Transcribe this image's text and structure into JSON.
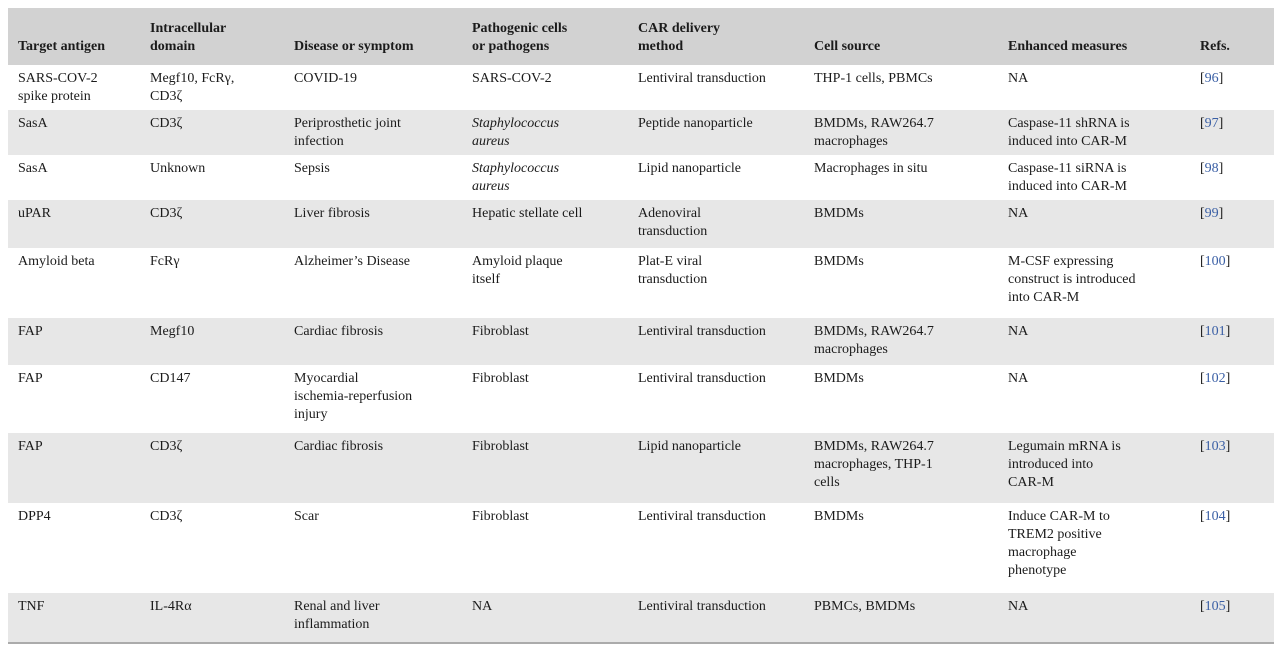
{
  "colors": {
    "header_bg": "#d2d2d2",
    "row_shade": "#e7e7e7",
    "text": "#1b1b1b",
    "ref_link": "#3a5fa5"
  },
  "table": {
    "columns": [
      "Target antigen",
      "Intracellular\ndomain",
      "Disease or symptom",
      "Pathogenic cells\nor pathogens",
      "CAR delivery\nmethod",
      "Cell source",
      "Enhanced measures",
      "Refs."
    ],
    "rows": [
      {
        "cells": [
          "SARS-COV-2\nspike protein",
          "Megf10, FcRγ,\nCD3ζ",
          "COVID-19",
          "SARS-COV-2",
          "Lentiviral transduction",
          "THP-1 cells, PBMCs",
          "NA"
        ],
        "ref": "96",
        "pathogen_italic": false
      },
      {
        "cells": [
          "SasA",
          "CD3ζ",
          "Periprosthetic joint\ninfection",
          "Staphylococcus\naureus",
          "Peptide nanoparticle",
          "BMDMs, RAW264.7\nmacrophages",
          "Caspase-11 shRNA is\ninduced into CAR-M"
        ],
        "ref": "97",
        "pathogen_italic": true
      },
      {
        "cells": [
          "SasA",
          "Unknown",
          "Sepsis",
          "Staphylococcus\naureus",
          "Lipid nanoparticle",
          "Macrophages in situ",
          "Caspase-11 siRNA is\ninduced into CAR-M"
        ],
        "ref": "98",
        "pathogen_italic": true
      },
      {
        "cells": [
          "uPAR",
          "CD3ζ",
          "Liver fibrosis",
          "Hepatic stellate cell",
          "Adenoviral\ntransduction",
          "BMDMs",
          "NA"
        ],
        "ref": "99",
        "pathogen_italic": false
      },
      {
        "cells": [
          "Amyloid beta",
          "FcRγ",
          "Alzheimer’s Disease",
          "Amyloid plaque\nitself",
          "Plat-E viral\ntransduction",
          "BMDMs",
          "M-CSF expressing\nconstruct is introduced\ninto CAR-M"
        ],
        "ref": "100",
        "pathogen_italic": false
      },
      {
        "cells": [
          "FAP",
          "Megf10",
          "Cardiac fibrosis",
          "Fibroblast",
          "Lentiviral transduction",
          "BMDMs, RAW264.7\nmacrophages",
          "NA"
        ],
        "ref": "101",
        "pathogen_italic": false
      },
      {
        "cells": [
          "FAP",
          "CD147",
          "Myocardial\nischemia-reperfusion\ninjury",
          "Fibroblast",
          "Lentiviral transduction",
          "BMDMs",
          "NA"
        ],
        "ref": "102",
        "pathogen_italic": false
      },
      {
        "cells": [
          "FAP",
          "CD3ζ",
          "Cardiac fibrosis",
          "Fibroblast",
          "Lipid nanoparticle",
          "BMDMs, RAW264.7\nmacrophages, THP-1\ncells",
          "Legumain mRNA is\nintroduced into\nCAR-M"
        ],
        "ref": "103",
        "pathogen_italic": false
      },
      {
        "cells": [
          "DPP4",
          "CD3ζ",
          "Scar",
          "Fibroblast",
          "Lentiviral transduction",
          "BMDMs",
          "Induce CAR-M to\nTREM2 positive\nmacrophage\nphenotype"
        ],
        "ref": "104",
        "pathogen_italic": false
      },
      {
        "cells": [
          "TNF",
          "IL-4Rα",
          "Renal and liver\ninflammation",
          "NA",
          "Lentiviral transduction",
          "PBMCs, BMDMs",
          "NA"
        ],
        "ref": "105",
        "pathogen_italic": false
      }
    ]
  }
}
